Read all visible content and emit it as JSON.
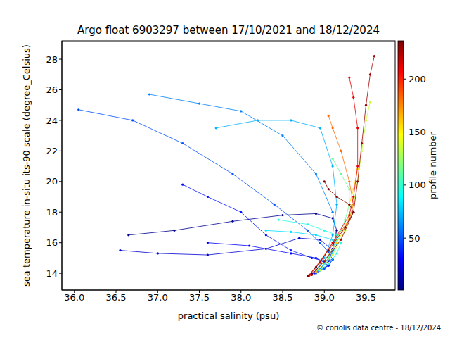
{
  "chart_data": {
    "type": "scatter",
    "title": "Argo float 6903297 between 17/10/2021 and 18/12/2024",
    "x_label": "practical salinity (psu)",
    "y_label": "sea temperature in-situ its-90 scale (degree_Celsius)",
    "annotation": "© coriolis data centre - 18/12/2024",
    "marker": "o",
    "line_style": "solid",
    "xlim": [
      35.85,
      39.85
    ],
    "xticks": [
      {
        "value": 36,
        "label": "36.0"
      },
      {
        "value": 36.5,
        "label": "36.5"
      },
      {
        "value": 37,
        "label": "37.0"
      },
      {
        "value": 37.5,
        "label": "37.5"
      },
      {
        "value": 38,
        "label": "38.0"
      },
      {
        "value": 38.5,
        "label": "38.5"
      },
      {
        "value": 39,
        "label": "39.0"
      },
      {
        "value": 39.5,
        "label": "39.5"
      }
    ],
    "ylim": [
      12.9,
      29.2
    ],
    "yticks": [
      14,
      16,
      18,
      20,
      22,
      24,
      26,
      28
    ],
    "colorbar": {
      "label": "profile number",
      "range": [
        1,
        236
      ],
      "ticks": [
        50,
        100,
        150,
        200
      ]
    },
    "series": [
      {
        "color": "#00008f",
        "x": [
          36.65,
          37.2,
          37.9,
          38.5,
          38.9,
          39.1,
          39.15,
          39.1,
          39.0,
          38.9,
          38.85
        ],
        "y": [
          16.5,
          16.8,
          17.4,
          17.8,
          17.9,
          17.6,
          16.8,
          15.6,
          14.8,
          14.2,
          13.95
        ]
      },
      {
        "color": "#0000d0",
        "x": [
          36.55,
          37.0,
          37.6,
          38.3,
          38.7,
          38.95,
          39.1,
          39.05,
          38.95,
          38.85
        ],
        "y": [
          15.5,
          15.3,
          15.2,
          15.6,
          16.3,
          16.2,
          15.5,
          14.8,
          14.3,
          14.0
        ]
      },
      {
        "color": "#0000ff",
        "x": [
          37.6,
          38.1,
          38.6,
          38.9,
          39.0,
          39.05,
          38.95,
          38.9
        ],
        "y": [
          16.0,
          15.8,
          15.3,
          15.0,
          14.7,
          14.5,
          14.3,
          14.1
        ]
      },
      {
        "color": "#0010ff",
        "x": [
          37.3,
          37.6,
          38.0,
          38.3,
          38.6,
          38.85,
          39.0,
          39.1,
          39.05,
          38.95,
          38.88
        ],
        "y": [
          19.8,
          19.0,
          18.0,
          16.5,
          15.5,
          15.0,
          14.8,
          14.9,
          14.5,
          14.2,
          14.0
        ]
      },
      {
        "color": "#0050ff",
        "x": [
          36.05,
          36.7,
          37.3,
          37.9,
          38.4,
          38.8,
          38.95,
          39.05,
          39.1,
          39.0,
          38.9
        ],
        "y": [
          24.7,
          24.0,
          22.5,
          20.5,
          18.5,
          16.8,
          16.0,
          15.4,
          14.9,
          14.3,
          14.0
        ]
      },
      {
        "color": "#0080ff",
        "x": [
          36.9,
          37.5,
          38.0,
          38.5,
          38.9,
          39.1,
          39.15,
          39.05,
          38.95
        ],
        "y": [
          25.7,
          25.1,
          24.6,
          23.0,
          20.5,
          18.0,
          16.2,
          15.0,
          14.3
        ]
      },
      {
        "color": "#00b0ff",
        "x": [
          37.7,
          38.2,
          38.6,
          38.95,
          39.1,
          39.15,
          39.1,
          39.0,
          38.9
        ],
        "y": [
          23.5,
          24.0,
          24.0,
          23.5,
          21.0,
          18.5,
          16.5,
          15.0,
          14.2
        ]
      },
      {
        "color": "#00e0ff",
        "x": [
          38.3,
          38.6,
          38.9,
          39.1,
          39.15,
          39.1,
          39.0,
          38.92
        ],
        "y": [
          16.8,
          16.7,
          16.5,
          16.2,
          15.9,
          15.3,
          14.6,
          14.2
        ]
      },
      {
        "color": "#1fffe0",
        "x": [
          38.45,
          38.8,
          39.0,
          39.15,
          39.2,
          39.15,
          39.05,
          38.95
        ],
        "y": [
          17.5,
          17.2,
          16.8,
          16.5,
          16.0,
          15.3,
          14.6,
          14.2
        ]
      },
      {
        "color": "#60ff97",
        "x": [
          39.1,
          39.2,
          39.3,
          39.3,
          39.25,
          39.15,
          39.05,
          38.95
        ],
        "y": [
          21.5,
          20.5,
          19.5,
          18.5,
          17.5,
          16.2,
          15.0,
          14.2
        ]
      },
      {
        "color": "#c2ff34",
        "x": [
          39.55,
          39.5,
          39.45,
          39.4,
          39.35,
          39.25,
          39.1,
          38.95
        ],
        "y": [
          25.2,
          24.0,
          22.0,
          20.0,
          18.5,
          16.8,
          15.2,
          14.2
        ]
      },
      {
        "color": "#ffd200",
        "x": [
          39.4,
          39.35,
          39.3,
          39.3,
          39.25,
          39.15,
          39.0,
          38.9
        ],
        "y": [
          20.8,
          19.5,
          18.5,
          17.8,
          17.0,
          16.0,
          14.8,
          14.1
        ]
      },
      {
        "color": "#ff6a00",
        "x": [
          39.05,
          39.1,
          39.2,
          39.3,
          39.35,
          39.3,
          39.1,
          38.95,
          38.82
        ],
        "y": [
          24.3,
          23.5,
          22.0,
          20.0,
          18.5,
          17.5,
          16.0,
          14.8,
          13.9
        ]
      },
      {
        "color": "#e60000",
        "x": [
          39.3,
          39.35,
          39.4,
          39.4,
          39.35,
          39.3,
          39.1,
          38.95,
          38.82
        ],
        "y": [
          26.8,
          25.5,
          23.5,
          21.0,
          19.0,
          17.8,
          16.0,
          14.7,
          13.85
        ]
      },
      {
        "color": "#a00000",
        "x": [
          39.6,
          39.55,
          39.5,
          39.45,
          39.4,
          39.35,
          39.2,
          39.0,
          38.85
        ],
        "y": [
          28.2,
          27.0,
          25.0,
          22.5,
          20.0,
          18.0,
          16.2,
          14.8,
          13.9
        ]
      },
      {
        "color": "#800000",
        "x": [
          39.0,
          39.05,
          39.15,
          39.3,
          39.35,
          39.25,
          39.05,
          38.9,
          38.8
        ],
        "y": [
          20.0,
          19.5,
          19.0,
          18.5,
          18.0,
          17.0,
          15.5,
          14.4,
          13.8
        ]
      }
    ]
  }
}
